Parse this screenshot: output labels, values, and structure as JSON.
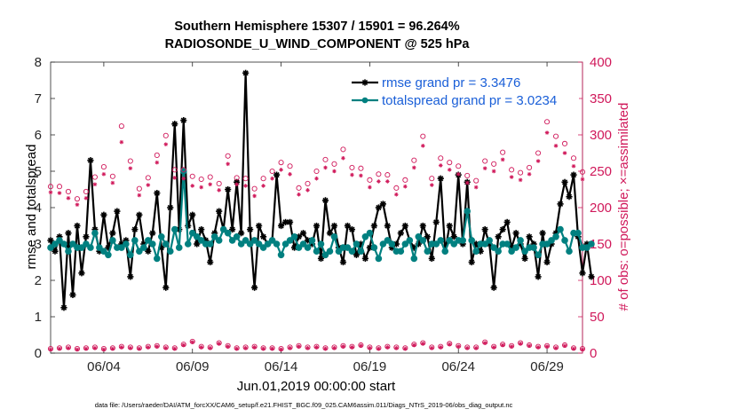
{
  "chart_data": {
    "type": "line",
    "title_line1": "Southern Hemisphere 15307 / 15901 = 96.264%",
    "title_line2": "RADIOSONDE_U_WIND_COMPONENT @ 525 hPa",
    "xlabel": "Jun.01,2019 00:00:00 start",
    "ylabel_left": "rmse and totalspread",
    "ylabel_right": "# of obs: o=possible; ×=assimilated",
    "footer": "data file: /Users/raeder/DAI/ATM_forcXX/CAM6_setup/f.e21.FHIST_BGC.f09_025.CAM6assim.011/Diags_NTrS_2019-06/obs_diag_output.nc",
    "xlim_days": [
      0.5,
      30.5
    ],
    "ylim_left": [
      0,
      8
    ],
    "ylim_right": [
      0,
      400
    ],
    "xticks": [
      {
        "day": 3.5,
        "label": "06/04"
      },
      {
        "day": 8.5,
        "label": "06/09"
      },
      {
        "day": 13.5,
        "label": "06/14"
      },
      {
        "day": 18.5,
        "label": "06/19"
      },
      {
        "day": 23.5,
        "label": "06/24"
      },
      {
        "day": 28.5,
        "label": "06/29"
      }
    ],
    "yticks_left": [
      "0",
      "1",
      "2",
      "3",
      "4",
      "5",
      "6",
      "7",
      "8"
    ],
    "yticks_right": [
      "0",
      "50",
      "100",
      "150",
      "200",
      "250",
      "300",
      "350",
      "400"
    ],
    "legend": [
      {
        "label": "rmse grand pr = 3.3476",
        "color": "#000000"
      },
      {
        "label": "totalspread grand pr = 3.0234",
        "color": "#008080"
      }
    ],
    "x_start_day": 0.5,
    "x_step_day": 0.25,
    "series": [
      {
        "name": "rmse",
        "color": "#000000",
        "marker": "asterisk",
        "values": [
          3.1,
          2.8,
          3.2,
          1.25,
          3.3,
          1.6,
          3.5,
          2.2,
          3.2,
          5.3,
          3.4,
          2.8,
          3.8,
          2.9,
          3.3,
          3.9,
          3.0,
          3.1,
          2.1,
          3.4,
          3.8,
          3.0,
          2.8,
          3.3,
          4.4,
          2.9,
          1.8,
          4.0,
          6.3,
          3.4,
          6.4,
          3.5,
          3.8,
          3.0,
          3.4,
          3.1,
          2.5,
          3.3,
          3.9,
          3.4,
          4.5,
          3.4,
          4.7,
          3.3,
          7.7,
          3.4,
          1.8,
          3.5,
          3.2,
          3.0,
          3.1,
          4.9,
          3.5,
          3.6,
          3.6,
          2.9,
          3.2,
          3.3,
          3.1,
          3.0,
          3.5,
          2.6,
          4.2,
          3.3,
          3.5,
          2.9,
          2.5,
          3.5,
          3.4,
          2.7,
          3.0,
          2.6,
          2.9,
          3.5,
          4.0,
          4.1,
          3.5,
          2.9,
          3.0,
          3.3,
          3.5,
          3.1,
          2.9,
          3.0,
          3.5,
          3.2,
          2.6,
          3.6,
          4.8,
          2.8,
          3.5,
          3.2,
          4.9,
          3.0,
          4.7,
          2.5,
          3.0,
          2.8,
          3.4,
          3.0,
          1.8,
          3.2,
          3.4,
          3.6,
          2.9,
          3.3,
          3.0,
          2.6,
          3.2,
          3.0,
          2.1,
          3.3,
          2.5,
          3.0,
          3.3,
          4.1,
          4.7,
          4.3,
          4.9,
          3.2,
          2.2,
          3.0,
          2.1
        ]
      },
      {
        "name": "totalspread",
        "color": "#008080",
        "marker": "circle",
        "values": [
          2.9,
          3.0,
          3.1,
          3.0,
          2.8,
          3.0,
          2.9,
          2.9,
          3.0,
          2.9,
          3.3,
          2.9,
          2.8,
          2.7,
          3.1,
          2.9,
          2.9,
          3.0,
          2.7,
          3.1,
          2.8,
          2.9,
          3.1,
          3.0,
          2.6,
          3.2,
          3.0,
          2.8,
          3.4,
          2.9,
          5.0,
          3.0,
          3.3,
          3.2,
          3.1,
          3.0,
          3.0,
          3.2,
          3.1,
          3.4,
          3.3,
          3.1,
          3.2,
          3.0,
          3.1,
          3.0,
          3.1,
          3.0,
          2.9,
          3.0,
          3.1,
          3.0,
          2.7,
          3.0,
          3.1,
          3.2,
          2.9,
          3.0,
          2.9,
          3.1,
          2.8,
          3.0,
          2.7,
          2.8,
          3.2,
          2.8,
          2.9,
          2.9,
          2.8,
          3.0,
          2.8,
          3.2,
          3.3,
          2.9,
          2.6,
          3.0,
          3.1,
          3.0,
          2.8,
          2.8,
          3.0,
          3.1,
          2.6,
          3.2,
          3.1,
          2.8,
          3.0,
          3.0,
          3.1,
          2.8,
          3.1,
          3.0,
          3.1,
          3.1,
          3.9,
          3.1,
          2.8,
          3.0,
          3.0,
          3.1,
          2.9,
          2.8,
          3.0,
          3.0,
          2.8,
          2.9,
          3.1,
          2.8,
          2.9,
          2.9,
          2.7,
          3.0,
          3.0,
          3.1,
          3.2,
          3.4,
          3.1,
          2.8,
          3.3,
          3.3,
          2.9,
          2.9,
          3.0
        ]
      },
      {
        "name": "obs possible (upper)",
        "color": "#d0185a",
        "marker": "o",
        "axis": "right",
        "x_step_day": 0.5,
        "values": [
          229,
          229,
          222,
          212,
          222,
          242,
          256,
          243,
          312,
          264,
          226,
          241,
          272,
          299,
          252,
          252,
          243,
          239,
          242,
          233,
          271,
          241,
          240,
          226,
          240,
          250,
          262,
          257,
          227,
          233,
          250,
          266,
          260,
          280,
          255,
          254,
          238,
          246,
          245,
          227,
          238,
          265,
          298,
          240,
          268,
          262,
          257,
          244,
          237,
          264,
          260,
          276,
          252,
          248,
          255,
          275,
          318,
          298,
          288,
          268,
          249
        ]
      },
      {
        "name": "obs assimilated (upper)",
        "color": "#d0185a",
        "marker": "asterisk",
        "axis": "right",
        "x_step_day": 0.5,
        "values": [
          221,
          220,
          213,
          204,
          213,
          232,
          246,
          234,
          290,
          254,
          217,
          231,
          262,
          287,
          241,
          240,
          230,
          228,
          232,
          224,
          260,
          232,
          230,
          216,
          230,
          240,
          252,
          246,
          218,
          224,
          240,
          255,
          250,
          268,
          245,
          244,
          228,
          236,
          236,
          218,
          229,
          255,
          285,
          231,
          258,
          252,
          246,
          234,
          228,
          254,
          250,
          266,
          242,
          238,
          246,
          264,
          303,
          285,
          275,
          257,
          239
        ]
      },
      {
        "name": "obs possible (lower)",
        "color": "#d0185a",
        "marker": "o",
        "axis": "right",
        "x_step_day": 0.5,
        "values": [
          6,
          7,
          8,
          6,
          7,
          8,
          6,
          7,
          9,
          8,
          7,
          9,
          10,
          8,
          7,
          12,
          16,
          9,
          8,
          14,
          10,
          7,
          8,
          9,
          7,
          7,
          6,
          8,
          10,
          8,
          9,
          7,
          8,
          10,
          9,
          11,
          8,
          7,
          9,
          8,
          7,
          12,
          14,
          8,
          9,
          13,
          10,
          8,
          8,
          15,
          9,
          12,
          10,
          14,
          11,
          9,
          10,
          8,
          11,
          7,
          6
        ]
      },
      {
        "name": "obs assimilated (lower)",
        "color": "#d0185a",
        "marker": "asterisk",
        "axis": "right",
        "x_step_day": 0.5,
        "values": [
          5,
          6,
          7,
          5,
          6,
          7,
          5,
          6,
          8,
          7,
          6,
          8,
          9,
          7,
          6,
          11,
          15,
          8,
          7,
          13,
          9,
          6,
          7,
          8,
          6,
          6,
          5,
          7,
          9,
          7,
          8,
          6,
          7,
          9,
          8,
          10,
          7,
          6,
          8,
          7,
          6,
          11,
          13,
          7,
          8,
          12,
          9,
          7,
          7,
          14,
          8,
          11,
          9,
          13,
          10,
          8,
          9,
          7,
          10,
          6,
          5
        ]
      }
    ]
  }
}
